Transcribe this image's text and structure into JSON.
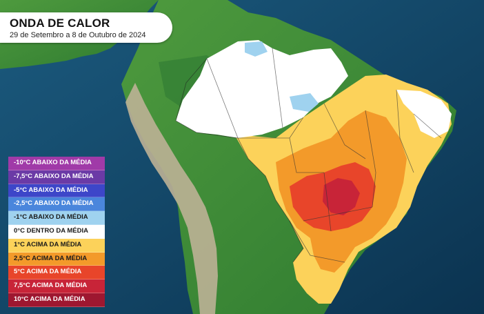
{
  "title": "ONDA DE CALOR",
  "subtitle": "29 de Setembro a 8 de Outubro de 2024",
  "legend": [
    {
      "label": "-10°C ABAIXO DA MÉDIA",
      "color": "#a03aa8",
      "text_color": "#ffffff"
    },
    {
      "label": "-7,5°C ABAIXO DA MÉDIA",
      "color": "#6b3aa6",
      "text_color": "#ffffff"
    },
    {
      "label": "-5°C ABAIXO DA MÉDIA",
      "color": "#3d46c9",
      "text_color": "#ffffff"
    },
    {
      "label": "-2,5°C ABAIXO DA MÉDIA",
      "color": "#4a86dc",
      "text_color": "#ffffff"
    },
    {
      "label": "-1°C ABAIXO DA MÉDIA",
      "color": "#9fd2ef",
      "text_color": "#1a1a1a"
    },
    {
      "label": "0°C DENTRO DA MÉDIA",
      "color": "#ffffff",
      "text_color": "#1a1a1a"
    },
    {
      "label": "1°C ACIMA DA MÉDIA",
      "color": "#fcd25a",
      "text_color": "#1a1a1a"
    },
    {
      "label": "2,5°C ACIMA DA MÉDIA",
      "color": "#f39a2a",
      "text_color": "#1a1a1a"
    },
    {
      "label": "5°C ACIMA DA MÉDIA",
      "color": "#e8452a",
      "text_color": "#ffffff"
    },
    {
      "label": "7,5°C ACIMA DA MÉDIA",
      "color": "#c82438",
      "text_color": "#ffffff"
    },
    {
      "label": "10°C ACIMA DA MÉDIA",
      "color": "#9e1730",
      "text_color": "#ffffff"
    }
  ],
  "colors": {
    "ocean": "#0e3d5e",
    "land_green": "#3e8f3a",
    "land_dark_green": "#2f7a33",
    "andes": "#b8ad93",
    "normal": "#ffffff",
    "above_1": "#fcd25a",
    "above_2_5": "#f39a2a",
    "above_5": "#e8452a",
    "above_7_5": "#c82438",
    "below_1": "#9fd2ef"
  }
}
